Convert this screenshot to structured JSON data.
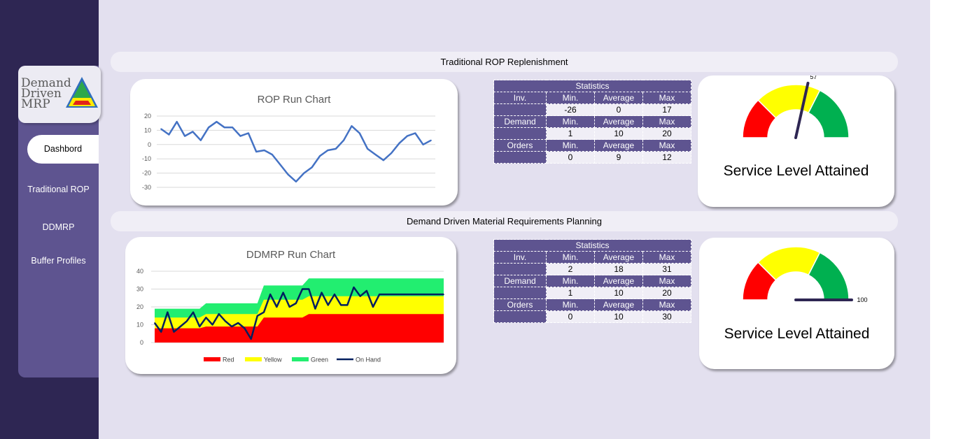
{
  "logo": {
    "line1": "Demand",
    "line2": "Driven",
    "line3": "MRP"
  },
  "nav": {
    "items": [
      "Dashbord",
      "Traditional ROP",
      "DDMRP",
      "Buffer Profiles"
    ],
    "active": "Dashbord"
  },
  "banners": {
    "rop": "Traditional ROP Replenishment",
    "ddmrp": "Demand Driven Material Requirements Planning"
  },
  "rop": {
    "stats": {
      "title": "Statistics",
      "headers": [
        "Min.",
        "Average",
        "Max"
      ],
      "rows": [
        {
          "label": "Inv.",
          "values": [
            "-26",
            "0",
            "17"
          ]
        },
        {
          "label": "Demand",
          "values": [
            "1",
            "10",
            "20"
          ]
        },
        {
          "label": "Orders",
          "values": [
            "0",
            "9",
            "12"
          ]
        }
      ]
    },
    "gauge": {
      "value": 57,
      "value_label": "57",
      "title": "Service Level Attained"
    }
  },
  "ddmrp": {
    "stats": {
      "title": "Statistics",
      "headers": [
        "Min.",
        "Average",
        "Max"
      ],
      "rows": [
        {
          "label": "Inv.",
          "values": [
            "2",
            "18",
            "31"
          ]
        },
        {
          "label": "Demand",
          "values": [
            "1",
            "10",
            "20"
          ]
        },
        {
          "label": "Orders",
          "values": [
            "0",
            "10",
            "30"
          ]
        }
      ]
    },
    "gauge": {
      "value": 100,
      "value_label": "100",
      "title": "Service Level Attained"
    }
  },
  "colors": {
    "red": "#ff0000",
    "yellow": "#ffff00",
    "green": "#00b050",
    "band_green": "#22ee70",
    "line": "#4472c4",
    "onhand": "#001f5f",
    "accent": "#5e5490"
  },
  "chart_data": [
    {
      "type": "line",
      "title": "ROP Run Chart",
      "xlabel": "",
      "ylabel": "",
      "ylim": [
        -30,
        20
      ],
      "yticks": [
        20,
        10,
        0,
        -10,
        -20,
        -30
      ],
      "grid": true,
      "legend": "none",
      "series": [
        {
          "values": [
            11,
            7,
            16,
            6,
            9,
            3,
            12,
            16,
            12,
            12,
            6,
            8,
            -5,
            -4,
            -7,
            -14,
            -21,
            -26,
            -20,
            -16,
            -8,
            -4,
            -3,
            3,
            13,
            8,
            -3,
            -7,
            -11,
            -6,
            1,
            6,
            8,
            0,
            3
          ]
        }
      ]
    },
    {
      "type": "area",
      "title": "DDMRP Run Chart",
      "xlabel": "",
      "ylabel": "",
      "ylim": [
        0,
        40
      ],
      "yticks": [
        40,
        30,
        20,
        10,
        0
      ],
      "grid": true,
      "legend": "bottom",
      "series": [
        {
          "name": "Red",
          "values": [
            8,
            8,
            8,
            8,
            8,
            8,
            8,
            8,
            9,
            9,
            9,
            9,
            9,
            9,
            9,
            9,
            9,
            14,
            14,
            14,
            14,
            14,
            14,
            14,
            16,
            16,
            16,
            16,
            16,
            16,
            16,
            16,
            16,
            16,
            16,
            16,
            16,
            16,
            16,
            16,
            16,
            16,
            16,
            16,
            16,
            16
          ]
        },
        {
          "name": "Yellow",
          "values": [
            14,
            14,
            14,
            14,
            14,
            14,
            14,
            14,
            16,
            16,
            16,
            16,
            16,
            16,
            16,
            16,
            16,
            24,
            24,
            24,
            24,
            24,
            24,
            24,
            26,
            26,
            26,
            26,
            26,
            26,
            26,
            26,
            26,
            26,
            26,
            26,
            26,
            26,
            26,
            26,
            26,
            26,
            26,
            26,
            26,
            26
          ]
        },
        {
          "name": "Green",
          "values": [
            19,
            19,
            19,
            19,
            19,
            19,
            19,
            19,
            22,
            22,
            22,
            22,
            22,
            22,
            22,
            22,
            22,
            32,
            32,
            32,
            32,
            32,
            32,
            32,
            36,
            36,
            36,
            36,
            36,
            36,
            36,
            36,
            36,
            36,
            36,
            36,
            36,
            36,
            36,
            36,
            36,
            36,
            36,
            36,
            36,
            36
          ]
        },
        {
          "name": "On Hand",
          "values": [
            11,
            6,
            17,
            6,
            9,
            12,
            17,
            9,
            14,
            10,
            16,
            12,
            9,
            11,
            8,
            2,
            15,
            17,
            27,
            20,
            28,
            20,
            22,
            30,
            30,
            19,
            28,
            21,
            27,
            21,
            21,
            31,
            26,
            29,
            20,
            27,
            27,
            27,
            27,
            27,
            27,
            27,
            27,
            27,
            27,
            27
          ]
        }
      ]
    }
  ]
}
